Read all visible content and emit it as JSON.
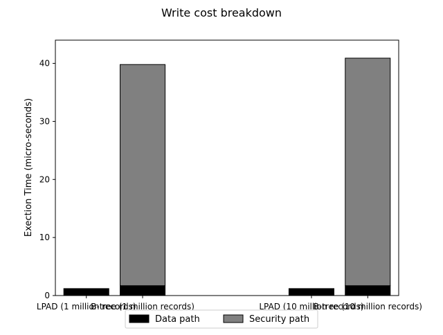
{
  "chart_data": {
    "type": "bar",
    "stacked": true,
    "title": "Write cost breakdown",
    "xlabel": "",
    "ylabel": "Exection Time (micro-seconds)",
    "ylim": [
      0,
      44
    ],
    "yticks": [
      0,
      10,
      20,
      30,
      40
    ],
    "categories": [
      "LPAD (1 million records)",
      "B-tree (1 million records)",
      "LPAD (10 million records)",
      "B-tree (10 million  records)"
    ],
    "x": [
      0,
      0.5,
      2,
      2.5
    ],
    "series": [
      {
        "name": "Data path",
        "color": "#000000",
        "values": [
          1.2,
          1.7,
          1.2,
          1.7
        ]
      },
      {
        "name": "Security path",
        "color": "#808080",
        "values": [
          0.0,
          38.1,
          0.0,
          39.2
        ]
      }
    ],
    "grid": false,
    "legend_position": "bottom-center"
  }
}
